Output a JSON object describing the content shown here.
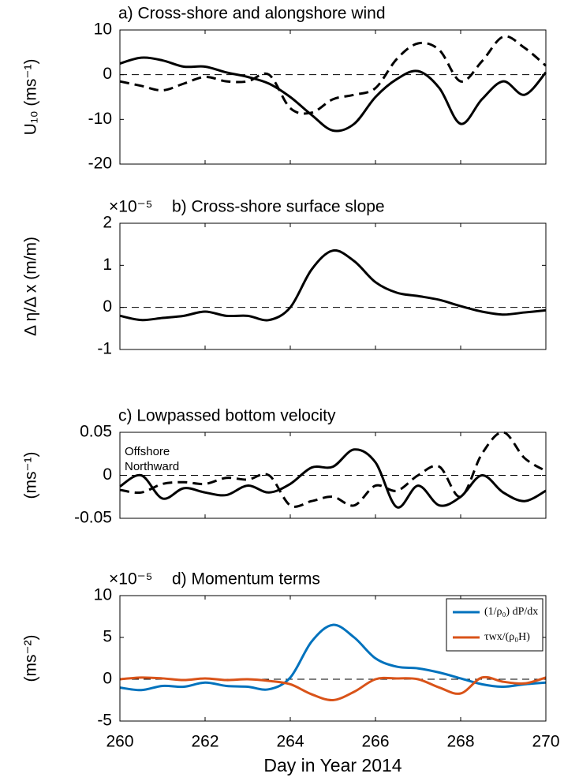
{
  "chart_data": [
    {
      "type": "line",
      "title": "a) Cross-shore and alongshore wind",
      "ylabel": "U₁₀ (ms⁻¹)",
      "xlim": [
        260,
        270
      ],
      "xticks": [
        260,
        262,
        264,
        266,
        268,
        270
      ],
      "show_xtick_labels": false,
      "ylim": [
        -20,
        10
      ],
      "yticks": [
        -20,
        -10,
        0,
        10
      ],
      "hline": 0,
      "x": [
        260,
        260.5,
        261,
        261.5,
        262,
        262.5,
        263,
        263.5,
        264,
        264.5,
        265,
        265.5,
        266,
        266.5,
        267,
        267.5,
        268,
        268.5,
        269,
        269.5,
        270
      ],
      "series": [
        {
          "color": "#000000",
          "linestyle": "solid",
          "values": [
            2.5,
            3.8,
            3.2,
            1.8,
            1.8,
            0.5,
            -0.5,
            -2,
            -5,
            -9,
            -12.5,
            -11,
            -5,
            -1,
            0.8,
            -3,
            -11,
            -5.5,
            -1.5,
            -4.5,
            0.5
          ]
        },
        {
          "color": "#000000",
          "linestyle": "dashed",
          "values": [
            -1.5,
            -2.5,
            -3.5,
            -2,
            -0.5,
            -1.5,
            -1.5,
            0,
            -7.5,
            -8.5,
            -5.5,
            -4.5,
            -3,
            3.5,
            7,
            5.5,
            -1.5,
            3,
            8.5,
            6,
            2
          ]
        }
      ]
    },
    {
      "type": "line",
      "title": "b) Cross-shore surface slope",
      "scale_label": "×10⁻⁵",
      "ylabel": "Δ η/Δ x (m/m)",
      "xlim": [
        260,
        270
      ],
      "xticks": [
        260,
        262,
        264,
        266,
        268,
        270
      ],
      "show_xtick_labels": false,
      "ylim": [
        -1,
        2
      ],
      "yticks": [
        -1,
        0,
        1,
        2
      ],
      "hline": 0,
      "x": [
        260,
        260.5,
        261,
        261.5,
        262,
        262.5,
        263,
        263.5,
        264,
        264.5,
        265,
        265.5,
        266,
        266.5,
        267,
        267.5,
        268,
        268.5,
        269,
        269.5,
        270
      ],
      "series": [
        {
          "color": "#000000",
          "linestyle": "solid",
          "values": [
            -0.2,
            -0.3,
            -0.25,
            -0.2,
            -0.1,
            -0.2,
            -0.2,
            -0.3,
            0.0,
            0.9,
            1.35,
            1.1,
            0.6,
            0.35,
            0.27,
            0.18,
            0.03,
            -0.1,
            -0.17,
            -0.12,
            -0.07
          ]
        }
      ]
    },
    {
      "type": "line",
      "title": "c) Lowpassed bottom velocity",
      "ylabel": "(ms⁻¹)",
      "annotations": [
        "Offshore",
        "Northward"
      ],
      "xlim": [
        260,
        270
      ],
      "xticks": [
        260,
        262,
        264,
        266,
        268,
        270
      ],
      "show_xtick_labels": false,
      "ylim": [
        -0.05,
        0.05
      ],
      "yticks": [
        -0.05,
        0,
        0.05
      ],
      "hline": 0,
      "x": [
        260,
        260.5,
        261,
        261.5,
        262,
        262.5,
        263,
        263.5,
        264,
        264.5,
        265,
        265.5,
        266,
        266.5,
        267,
        267.5,
        268,
        268.5,
        269,
        269.5,
        270
      ],
      "series": [
        {
          "color": "#000000",
          "linestyle": "solid",
          "values": [
            -0.013,
            0.0,
            -0.027,
            -0.015,
            -0.02,
            -0.023,
            -0.012,
            -0.02,
            -0.01,
            0.009,
            0.01,
            0.03,
            0.015,
            -0.037,
            -0.012,
            -0.035,
            -0.025,
            0.0,
            -0.02,
            -0.03,
            -0.018
          ]
        },
        {
          "color": "#000000",
          "linestyle": "dashed",
          "values": [
            -0.017,
            -0.02,
            -0.01,
            -0.008,
            -0.01,
            -0.003,
            -0.005,
            0.0,
            -0.035,
            -0.03,
            -0.025,
            -0.035,
            -0.012,
            -0.018,
            0.0,
            0.01,
            -0.025,
            0.025,
            0.05,
            0.02,
            0.005
          ]
        }
      ]
    },
    {
      "type": "line",
      "title": "d) Momentum terms",
      "scale_label": "×10⁻⁵",
      "ylabel": "(ms⁻²)",
      "xlabel": "Day in Year 2014",
      "xlim": [
        260,
        270
      ],
      "xticks": [
        260,
        262,
        264,
        266,
        268,
        270
      ],
      "show_xtick_labels": true,
      "ylim": [
        -5,
        10
      ],
      "yticks": [
        -5,
        0,
        5,
        10
      ],
      "hline": 0,
      "legend": "upper right",
      "x": [
        260,
        260.5,
        261,
        261.5,
        262,
        262.5,
        263,
        263.5,
        264,
        264.5,
        265,
        265.5,
        266,
        266.5,
        267,
        267.5,
        268,
        268.5,
        269,
        269.5,
        270
      ],
      "series": [
        {
          "name": "(1/ρ₀) dP/dx",
          "color": "#0072bd",
          "linestyle": "solid",
          "values": [
            -1,
            -1.3,
            -0.8,
            -0.9,
            -0.4,
            -0.8,
            -0.9,
            -1.2,
            0.2,
            4.5,
            6.5,
            5,
            2.5,
            1.5,
            1.3,
            0.8,
            0.1,
            -0.6,
            -0.9,
            -0.6,
            -0.4
          ]
        },
        {
          "name": "τwx/(ρ₀H)",
          "color": "#d95319",
          "linestyle": "solid",
          "values": [
            0,
            0.2,
            0.1,
            -0.1,
            0.1,
            -0.1,
            0,
            -0.2,
            -0.6,
            -1.8,
            -2.5,
            -1.5,
            0,
            0.1,
            0,
            -1,
            -1.7,
            0.2,
            -0.3,
            -0.5,
            0.2
          ]
        }
      ]
    }
  ]
}
